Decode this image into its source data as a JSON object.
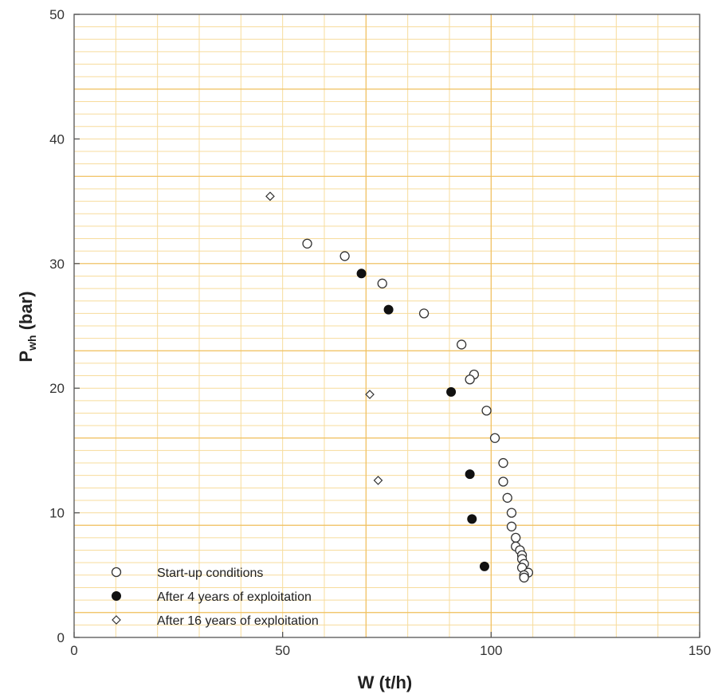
{
  "chart_data": {
    "type": "scatter",
    "xlabel": "W (t/h)",
    "ylabel_main": "P",
    "ylabel_sub": "wh",
    "ylabel_tail": " (bar)",
    "xlim": [
      0,
      150
    ],
    "ylim": [
      0,
      50
    ],
    "x_ticks": [
      0,
      50,
      100,
      150
    ],
    "y_ticks": [
      0,
      10,
      20,
      30,
      40,
      50
    ],
    "x_tick_labels": [
      "0",
      "50",
      "100",
      "150"
    ],
    "y_tick_labels": [
      "0",
      "10",
      "20",
      "30",
      "40",
      "50"
    ],
    "grid": true,
    "legend_position": "bottom-left",
    "colors": {
      "grid_minor": "#f7dc9c",
      "grid_major": "#f0c060",
      "axis": "#555555",
      "marker": "#333333"
    },
    "series": [
      {
        "name": "Start-up conditions",
        "marker": "open-circle",
        "points": [
          [
            55.9,
            31.6
          ],
          [
            64.9,
            30.6
          ],
          [
            73.9,
            28.4
          ],
          [
            83.9,
            26.0
          ],
          [
            92.9,
            23.5
          ],
          [
            95.9,
            21.1
          ],
          [
            94.9,
            20.7
          ],
          [
            98.9,
            18.2
          ],
          [
            100.9,
            16.0
          ],
          [
            102.9,
            14.0
          ],
          [
            102.9,
            12.5
          ],
          [
            103.9,
            11.2
          ],
          [
            104.9,
            10.0
          ],
          [
            104.9,
            8.9
          ],
          [
            105.9,
            8.0
          ],
          [
            105.9,
            7.3
          ],
          [
            106.9,
            7.0
          ],
          [
            107.4,
            6.6
          ],
          [
            107.4,
            6.3
          ],
          [
            107.9,
            5.9
          ],
          [
            107.4,
            5.6
          ],
          [
            108.9,
            5.2
          ],
          [
            107.9,
            5.0
          ],
          [
            107.9,
            4.8
          ]
        ]
      },
      {
        "name": "After 4 years of exploitation",
        "marker": "filled-circle",
        "points": [
          [
            68.9,
            29.2
          ],
          [
            75.4,
            26.3
          ],
          [
            90.4,
            19.7
          ],
          [
            94.9,
            13.1
          ],
          [
            95.4,
            9.5
          ],
          [
            98.4,
            5.7
          ]
        ]
      },
      {
        "name": "After 16 years of exploitation",
        "marker": "open-diamond",
        "points": [
          [
            47.0,
            35.4
          ],
          [
            70.9,
            19.5
          ],
          [
            72.9,
            12.6
          ]
        ]
      }
    ]
  }
}
